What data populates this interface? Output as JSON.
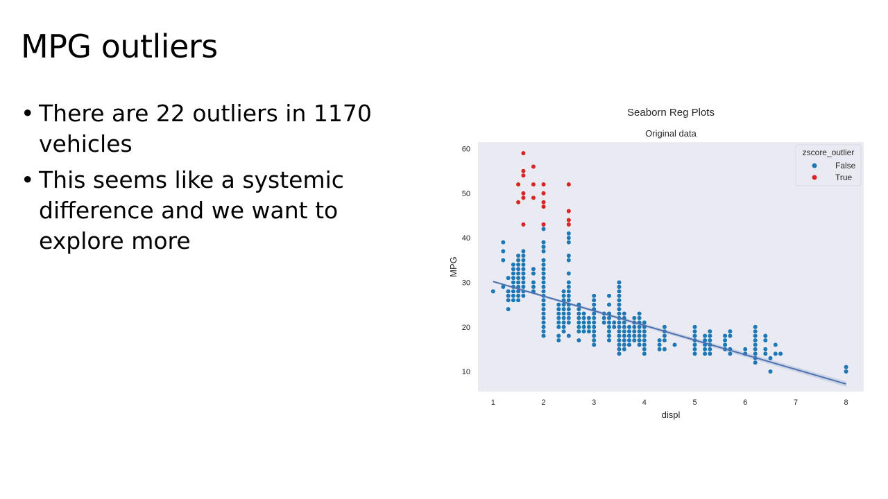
{
  "slide": {
    "title": "MPG outliers",
    "bullets": [
      "There are 22 outliers in 1170 vehicles",
      "This seems like a systemic difference and we want to explore more"
    ]
  },
  "chart_data": {
    "type": "scatter",
    "title": "Seaborn Reg Plots",
    "subtitle": "Original data",
    "xlabel": "displ",
    "ylabel": "MPG",
    "xlim": [
      0.7,
      8.35
    ],
    "ylim": [
      5.5,
      61.5
    ],
    "xticks": [
      1,
      2,
      3,
      4,
      5,
      6,
      7,
      8
    ],
    "yticks": [
      10,
      20,
      30,
      40,
      50,
      60
    ],
    "grid": false,
    "legend": {
      "title": "zscore_outlier",
      "placement": "top-right",
      "entries": [
        {
          "label": "False",
          "color": "#1f77b4"
        },
        {
          "label": "True",
          "color": "#d62728"
        }
      ]
    },
    "regression_line": {
      "x": [
        1.0,
        8.0
      ],
      "y": [
        30.2,
        7.2
      ],
      "color": "#4c72b0"
    },
    "series": [
      {
        "label": "False",
        "color": "#1f77b4",
        "columns": [
          {
            "x": 1.0,
            "y": [
              28
            ]
          },
          {
            "x": 1.2,
            "y": [
              29,
              35,
              37,
              39
            ]
          },
          {
            "x": 1.3,
            "y": [
              24,
              26,
              27,
              28,
              31
            ]
          },
          {
            "x": 1.4,
            "y": [
              26,
              27,
              28,
              29,
              30,
              31,
              32,
              33,
              34
            ]
          },
          {
            "x": 1.5,
            "y": [
              26,
              27,
              28,
              29,
              30,
              31,
              32,
              33,
              34,
              35,
              36
            ]
          },
          {
            "x": 1.6,
            "y": [
              27,
              28,
              29,
              30,
              31,
              32,
              33,
              34,
              35,
              36,
              37
            ]
          },
          {
            "x": 1.8,
            "y": [
              28,
              29,
              30,
              32,
              33
            ]
          },
          {
            "x": 2.0,
            "y": [
              18,
              19,
              20,
              21,
              22,
              23,
              24,
              25,
              26,
              27,
              28,
              29,
              30,
              31,
              32,
              33,
              34,
              35,
              37,
              38,
              39,
              42
            ]
          },
          {
            "x": 2.3,
            "y": [
              17,
              18,
              20,
              21,
              22,
              23,
              24,
              25
            ]
          },
          {
            "x": 2.4,
            "y": [
              19,
              20,
              21,
              22,
              23,
              24,
              25,
              26,
              27,
              28
            ]
          },
          {
            "x": 2.5,
            "y": [
              18,
              21,
              22,
              23,
              24,
              25,
              26,
              27,
              28,
              29,
              30,
              32,
              35,
              36,
              39,
              40,
              41
            ]
          },
          {
            "x": 2.7,
            "y": [
              17,
              19,
              20,
              21,
              22,
              23,
              24,
              25
            ]
          },
          {
            "x": 2.8,
            "y": [
              19,
              20,
              21,
              22,
              23
            ]
          },
          {
            "x": 2.9,
            "y": [
              19,
              20,
              21,
              22
            ]
          },
          {
            "x": 3.0,
            "y": [
              16,
              17,
              18,
              19,
              20,
              21,
              22,
              23,
              24,
              25,
              26,
              27
            ]
          },
          {
            "x": 3.2,
            "y": [
              21,
              22,
              23
            ]
          },
          {
            "x": 3.3,
            "y": [
              17,
              18,
              19,
              20,
              21,
              22,
              23,
              25,
              27
            ]
          },
          {
            "x": 3.4,
            "y": [
              20,
              21
            ]
          },
          {
            "x": 3.5,
            "y": [
              14,
              15,
              16,
              17,
              18,
              19,
              20,
              21,
              22,
              23,
              24,
              25,
              26,
              27,
              28,
              29,
              30
            ]
          },
          {
            "x": 3.6,
            "y": [
              15,
              16,
              17,
              18,
              19,
              20,
              21,
              22,
              23
            ]
          },
          {
            "x": 3.7,
            "y": [
              16,
              17,
              18,
              19,
              20
            ]
          },
          {
            "x": 3.8,
            "y": [
              17,
              18,
              19,
              20,
              21,
              22
            ]
          },
          {
            "x": 3.9,
            "y": [
              16,
              17,
              18,
              19,
              20,
              21,
              22,
              23
            ]
          },
          {
            "x": 4.0,
            "y": [
              14,
              15,
              16,
              17,
              18,
              19,
              20,
              21
            ]
          },
          {
            "x": 4.3,
            "y": [
              15,
              16,
              17
            ]
          },
          {
            "x": 4.4,
            "y": [
              15,
              17,
              18,
              19,
              20
            ]
          },
          {
            "x": 4.6,
            "y": [
              16
            ]
          },
          {
            "x": 5.0,
            "y": [
              14,
              15,
              16,
              17,
              18,
              19,
              20
            ]
          },
          {
            "x": 5.2,
            "y": [
              14,
              15,
              16,
              17,
              18
            ]
          },
          {
            "x": 5.3,
            "y": [
              14,
              15,
              16,
              17,
              18,
              19
            ]
          },
          {
            "x": 5.6,
            "y": [
              15,
              16,
              17,
              18
            ]
          },
          {
            "x": 5.7,
            "y": [
              14,
              15,
              18,
              19
            ]
          },
          {
            "x": 6.0,
            "y": [
              14,
              15
            ]
          },
          {
            "x": 6.2,
            "y": [
              12,
              13,
              14,
              15,
              16,
              17,
              18,
              19,
              20
            ]
          },
          {
            "x": 6.4,
            "y": [
              14,
              15,
              17,
              18
            ]
          },
          {
            "x": 6.5,
            "y": [
              10,
              13
            ]
          },
          {
            "x": 6.6,
            "y": [
              14,
              16
            ]
          },
          {
            "x": 6.7,
            "y": [
              14
            ]
          },
          {
            "x": 8.0,
            "y": [
              10,
              11
            ]
          }
        ]
      },
      {
        "label": "True",
        "color": "#d62728",
        "columns": [
          {
            "x": 1.5,
            "y": [
              48,
              52
            ]
          },
          {
            "x": 1.6,
            "y": [
              43,
              49,
              50,
              54,
              55,
              59
            ]
          },
          {
            "x": 1.8,
            "y": [
              49,
              52,
              56
            ]
          },
          {
            "x": 2.0,
            "y": [
              43,
              47,
              48,
              50,
              52
            ]
          },
          {
            "x": 2.5,
            "y": [
              43,
              44,
              46,
              52
            ]
          }
        ]
      }
    ]
  }
}
